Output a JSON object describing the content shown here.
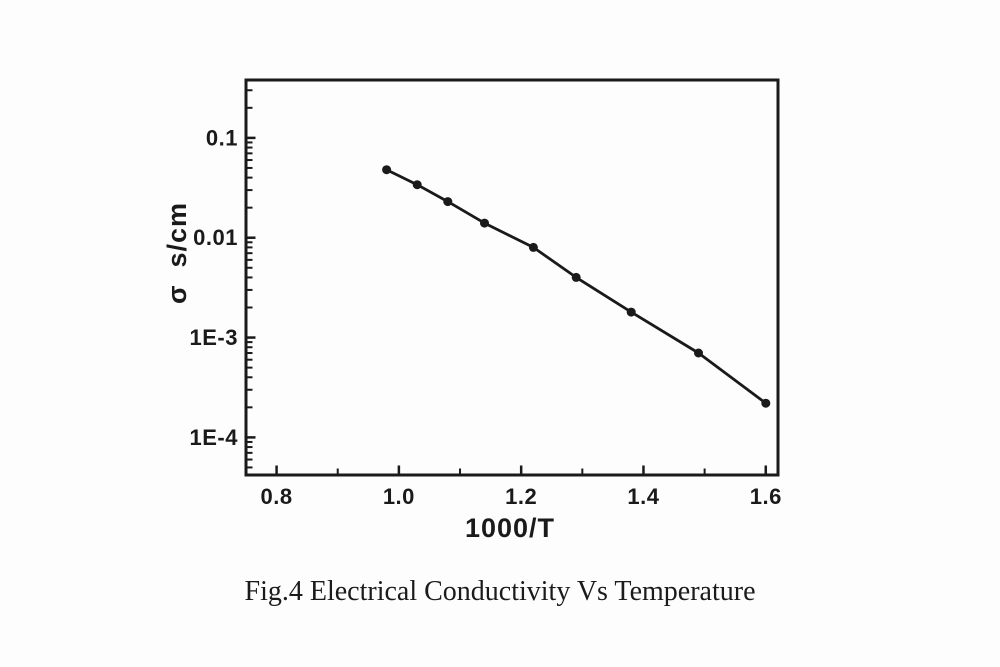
{
  "figure": {
    "caption": "Fig.4 Electrical Conductivity Vs Temperature"
  },
  "chart_data": {
    "type": "line",
    "title": "",
    "xlabel": "1000/T",
    "ylabel": "σ  s/cm",
    "x_scale": "linear",
    "y_scale": "log",
    "xlim": [
      0.75,
      1.62
    ],
    "ylim": [
      4.2e-05,
      0.38
    ],
    "grid": false,
    "legend": false,
    "ink_color": "#1a1a1a",
    "background_color": "#fdfdfd",
    "x_ticks": {
      "values": [
        0.8,
        1.0,
        1.2,
        1.4,
        1.6
      ],
      "labels": [
        "0.8",
        "1.0",
        "1.2",
        "1.4",
        "1.6"
      ],
      "minor": [
        0.9,
        1.1,
        1.3,
        1.5
      ]
    },
    "y_ticks": {
      "values": [
        0.1,
        0.01,
        0.001,
        0.0001
      ],
      "labels": [
        "0.1",
        "0.01",
        "1E-3",
        "1E-4"
      ]
    },
    "series": [
      {
        "name": "conductivity",
        "marker": "circle",
        "color": "#1a1a1a",
        "x": [
          0.98,
          1.03,
          1.08,
          1.14,
          1.22,
          1.29,
          1.38,
          1.49,
          1.6
        ],
        "y": [
          0.048,
          0.034,
          0.023,
          0.014,
          0.008,
          0.004,
          0.0018,
          0.0007,
          0.00022
        ]
      }
    ]
  }
}
